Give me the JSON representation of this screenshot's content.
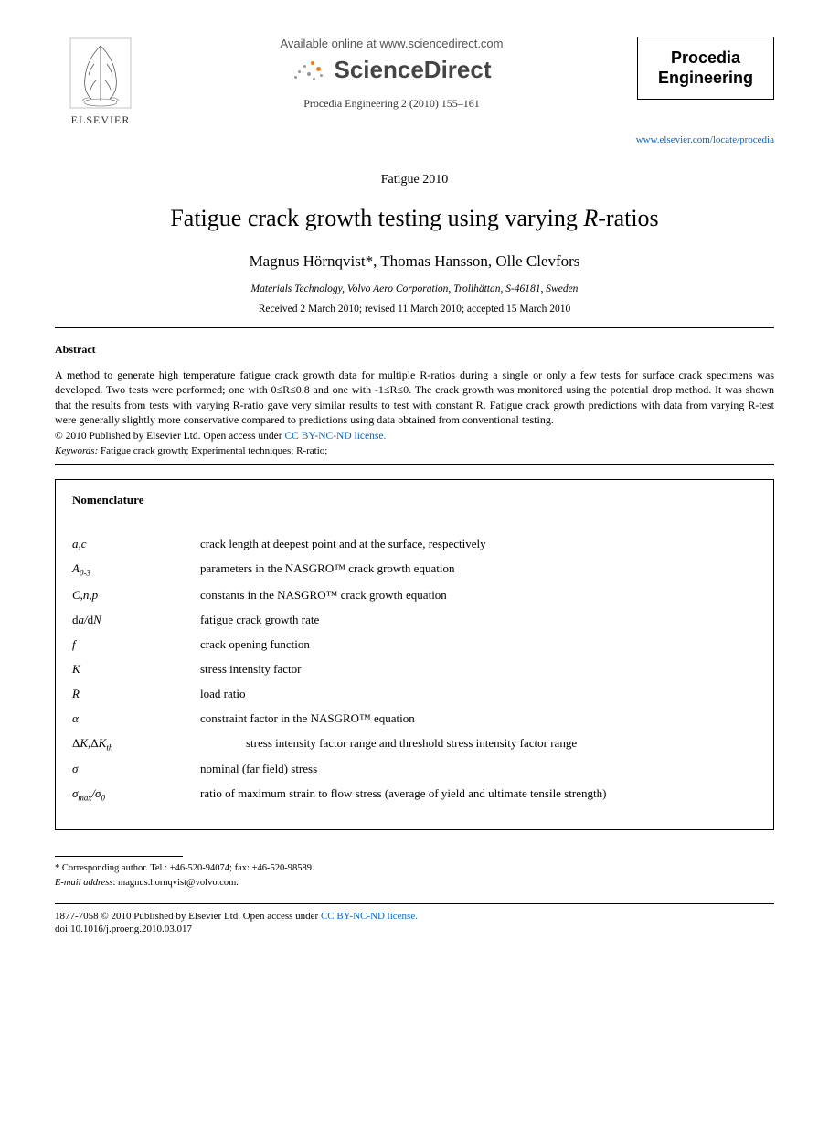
{
  "header": {
    "publisher_label": "ELSEVIER",
    "available_text": "Available online at www.sciencedirect.com",
    "sd_brand": "ScienceDirect",
    "citation": "Procedia Engineering 2 (2010) 155–161",
    "journal_name_line1": "Procedia",
    "journal_name_line2": "Engineering",
    "journal_url": "www.elsevier.com/locate/procedia"
  },
  "front": {
    "conference": "Fatigue 2010",
    "title_pre": "Fatigue crack growth testing using varying ",
    "title_ital": "R",
    "title_post": "-ratios",
    "authors": "Magnus Hörnqvist*, Thomas Hansson, Olle Clevfors",
    "affiliation": "Materials Technology, Volvo Aero Corporation, Trollhättan, S-46181, Sweden",
    "dates": "Received 2 March 2010; revised 11 March 2010; accepted 15 March 2010"
  },
  "abstract": {
    "heading": "Abstract",
    "body": "A method to generate high temperature fatigue crack growth data for multiple R-ratios during a single or only a few tests for surface crack specimens was developed. Two tests were performed; one with 0≤R≤0.8 and one with -1≤R≤0. The crack growth was monitored using the potential drop method. It was shown that the results from tests with varying R-ratio gave very similar results to test with constant R. Fatigue crack growth predictions with data from varying R-test were generally slightly more conservative compared to predictions using data obtained from conventional testing.",
    "copyright_pre": "© 2010 Published by Elsevier Ltd. ",
    "copyright_access": "Open access under ",
    "license_text": "CC BY-NC-ND license.",
    "keywords_label": "Keywords:",
    "keywords": " Fatigue crack growth; Experimental techniques; R-ratio;"
  },
  "nomenclature": {
    "title": "Nomenclature",
    "rows": [
      {
        "sym_html": "a,c",
        "def": "crack length at deepest point and at the surface, respectively",
        "indent": false
      },
      {
        "sym_html": "A<span class='sub'>0-3</span>",
        "def": "parameters in the NASGRO™ crack growth equation",
        "indent": false
      },
      {
        "sym_html": "C,n,p",
        "def": "constants in the NASGRO™ crack growth equation",
        "indent": false
      },
      {
        "sym_html": "<span style='font-style:normal'>d</span>a/<span style='font-style:normal'>d</span>N",
        "def": "fatigue crack growth rate",
        "indent": false
      },
      {
        "sym_html": "f",
        "def": "crack opening function",
        "indent": false
      },
      {
        "sym_html": "K",
        "def": "stress intensity factor",
        "indent": false
      },
      {
        "sym_html": "R",
        "def": "load ratio",
        "indent": false
      },
      {
        "sym_html": "α",
        "def": "constraint factor in the NASGRO™ equation",
        "indent": false
      },
      {
        "sym_html": "<span style='font-style:normal'>Δ</span>K,<span style='font-style:normal'>Δ</span>K<span class='sub'>th</span>",
        "def": "stress intensity factor range and threshold stress intensity factor range",
        "indent": true
      },
      {
        "sym_html": "σ",
        "def": "nominal (far field) stress",
        "indent": false
      },
      {
        "sym_html": "σ<span class='sub'>max</span>/σ<span class='sub'>0</span>",
        "def": "ratio of maximum strain to flow stress (average of yield and ultimate tensile strength)",
        "indent": false
      }
    ]
  },
  "footnotes": {
    "corresponding": "* Corresponding author. Tel.: +46-520-94074; fax: +46-520-98589.",
    "email_label": "E-mail address",
    "email": ": magnus.hornqvist@volvo.com."
  },
  "footer": {
    "issn_pre": "1877-7058 © 2010 Published by Elsevier Ltd. ",
    "issn_access": "Open access under ",
    "license_text": "CC BY-NC-ND license.",
    "doi": "doi:10.1016/j.proeng.2010.03.017"
  },
  "colors": {
    "link": "#0066cc",
    "text": "#000000",
    "background": "#ffffff",
    "rule": "#000000"
  }
}
